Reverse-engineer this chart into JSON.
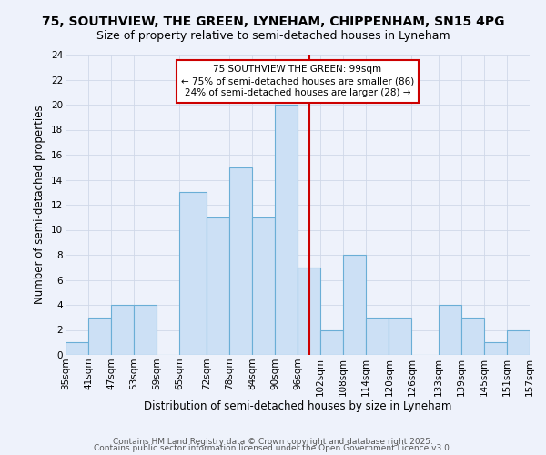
{
  "title": "75, SOUTHVIEW, THE GREEN, LYNEHAM, CHIPPENHAM, SN15 4PG",
  "subtitle": "Size of property relative to semi-detached houses in Lyneham",
  "xlabel": "Distribution of semi-detached houses by size in Lyneham",
  "ylabel": "Number of semi-detached properties",
  "bin_edges": [
    35,
    41,
    47,
    53,
    59,
    65,
    72,
    78,
    84,
    90,
    96,
    102,
    108,
    114,
    120,
    126,
    133,
    139,
    145,
    151,
    157
  ],
  "bin_counts": [
    1,
    3,
    4,
    4,
    0,
    13,
    11,
    15,
    11,
    20,
    7,
    2,
    8,
    3,
    3,
    0,
    4,
    3,
    1,
    2
  ],
  "bar_facecolor": "#cce0f5",
  "bar_edgecolor": "#6aaed6",
  "grid_color": "#d0d8e8",
  "bg_color": "#eef2fb",
  "property_size": 99,
  "red_line_color": "#cc0000",
  "annotation_line1": "75 SOUTHVIEW THE GREEN: 99sqm",
  "annotation_line2": "← 75% of semi-detached houses are smaller (86)",
  "annotation_line3": "24% of semi-detached houses are larger (28) →",
  "annotation_box_color": "#ffffff",
  "annotation_border_color": "#cc0000",
  "ylim": [
    0,
    24
  ],
  "yticks": [
    0,
    2,
    4,
    6,
    8,
    10,
    12,
    14,
    16,
    18,
    20,
    22,
    24
  ],
  "tick_labels": [
    "35sqm",
    "41sqm",
    "47sqm",
    "53sqm",
    "59sqm",
    "65sqm",
    "72sqm",
    "78sqm",
    "84sqm",
    "90sqm",
    "96sqm",
    "102sqm",
    "108sqm",
    "114sqm",
    "120sqm",
    "126sqm",
    "133sqm",
    "139sqm",
    "145sqm",
    "151sqm",
    "157sqm"
  ],
  "footer1": "Contains HM Land Registry data © Crown copyright and database right 2025.",
  "footer2": "Contains public sector information licensed under the Open Government Licence v3.0.",
  "title_fontsize": 10,
  "subtitle_fontsize": 9,
  "axis_label_fontsize": 8.5,
  "tick_fontsize": 7.5,
  "footer_fontsize": 6.5,
  "annotation_fontsize": 7.5
}
